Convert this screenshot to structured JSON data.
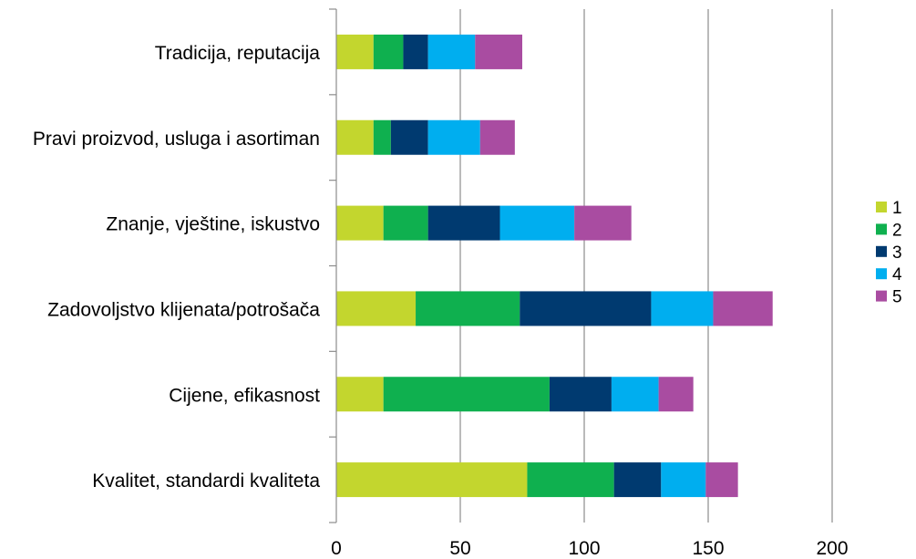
{
  "chart_data": {
    "type": "bar",
    "orientation": "horizontal",
    "stacked": true,
    "title": "",
    "xlabel": "",
    "ylabel": "",
    "categories": [
      "Kvalitet, standardi  kvaliteta",
      "Cijene, efikasnost",
      "Zadovoljstvo  klijenata/potrošača",
      "Znanje, vještine, iskustvo",
      "Pravi proizvod,  usluga  i asortiman",
      "Tradicija,  reputacija"
    ],
    "series": [
      {
        "name": "1",
        "color": "#c3d62e",
        "values": [
          77,
          19,
          32,
          19,
          15,
          15
        ]
      },
      {
        "name": "2",
        "color": "#0fb04f",
        "values": [
          35,
          67,
          42,
          18,
          7,
          12
        ]
      },
      {
        "name": "3",
        "color": "#003a70",
        "values": [
          19,
          25,
          53,
          29,
          15,
          10
        ]
      },
      {
        "name": "4",
        "color": "#00aeef",
        "values": [
          18,
          19,
          25,
          30,
          21,
          19
        ]
      },
      {
        "name": "5",
        "color": "#a94ca1",
        "values": [
          13,
          14,
          24,
          23,
          14,
          19
        ]
      }
    ],
    "xlim": [
      0,
      200
    ],
    "xticks": [
      0,
      50,
      100,
      150,
      200
    ],
    "grid": true,
    "legend_position": "right"
  }
}
